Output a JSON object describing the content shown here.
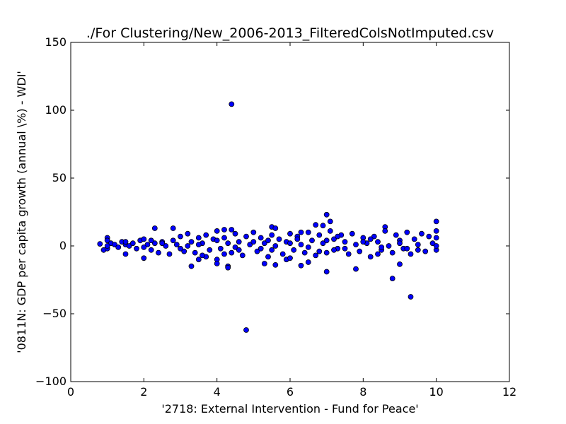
{
  "chart_data": {
    "type": "scatter",
    "title": "./For Clustering/New_2006-2013_FilteredColsNotImputed.csv",
    "xlabel": "'2718: External Intervention - Fund for Peace'",
    "ylabel": "'0811N: GDP per capita growth  (annual \\%) - WDI'",
    "xlim": [
      0,
      12
    ],
    "ylim": [
      -100,
      150
    ],
    "xticks": [
      0,
      2,
      4,
      6,
      8,
      10,
      12
    ],
    "yticks": [
      -100,
      -50,
      0,
      50,
      100,
      150
    ],
    "xtick_labels": [
      "0",
      "2",
      "4",
      "6",
      "8",
      "10",
      "12"
    ],
    "ytick_labels": [
      "−100",
      "−50",
      "0",
      "50",
      "100",
      "150"
    ],
    "grid": false,
    "marker_color": "#0000ff",
    "marker_edge": "#000000",
    "series": [
      {
        "name": "countries",
        "points": [
          [
            4.4,
            104.5
          ],
          [
            4.8,
            -62
          ],
          [
            9.3,
            -37.5
          ],
          [
            8.8,
            -24
          ],
          [
            7.0,
            23
          ],
          [
            7.1,
            18
          ],
          [
            10.0,
            18
          ],
          [
            7.0,
            -19
          ],
          [
            9.0,
            -13.5
          ],
          [
            7.8,
            -17
          ],
          [
            6.9,
            15
          ],
          [
            6.7,
            15.5
          ],
          [
            3.3,
            -15
          ],
          [
            4.3,
            -15
          ],
          [
            4.3,
            -16
          ],
          [
            4.2,
            12
          ],
          [
            4.4,
            12
          ],
          [
            2.3,
            13
          ],
          [
            2.8,
            13
          ],
          [
            5.3,
            -13
          ],
          [
            5.6,
            -14
          ],
          [
            6.3,
            -14.5
          ],
          [
            6.5,
            -12
          ],
          [
            8.6,
            14
          ],
          [
            5.5,
            14
          ],
          [
            5.6,
            13
          ],
          [
            4.0,
            -10
          ],
          [
            4.0,
            -13
          ],
          [
            3.5,
            -10
          ],
          [
            3.7,
            -8
          ],
          [
            5.9,
            -10
          ],
          [
            6.0,
            -9
          ],
          [
            0.8,
            1.5
          ],
          [
            0.9,
            -3
          ],
          [
            1.0,
            6
          ],
          [
            1.0,
            4
          ],
          [
            1.0,
            -2
          ],
          [
            1.1,
            2
          ],
          [
            1.2,
            1
          ],
          [
            1.3,
            -1
          ],
          [
            1.4,
            3
          ],
          [
            1.5,
            -6
          ],
          [
            1.5,
            1
          ],
          [
            1.6,
            0
          ],
          [
            1.7,
            2
          ],
          [
            1.8,
            -2
          ],
          [
            1.9,
            4
          ],
          [
            2.0,
            -9
          ],
          [
            2.0,
            5
          ],
          [
            2.1,
            1
          ],
          [
            2.2,
            -3
          ],
          [
            2.3,
            2
          ],
          [
            2.4,
            -5
          ],
          [
            2.5,
            3
          ],
          [
            2.6,
            0
          ],
          [
            2.7,
            -6
          ],
          [
            2.8,
            4
          ],
          [
            2.9,
            1
          ],
          [
            3.0,
            7
          ],
          [
            3.1,
            -4
          ],
          [
            3.2,
            9
          ],
          [
            3.3,
            3
          ],
          [
            3.4,
            -5
          ],
          [
            3.5,
            6
          ],
          [
            3.6,
            2
          ],
          [
            3.7,
            8
          ],
          [
            3.8,
            -3
          ],
          [
            3.9,
            5
          ],
          [
            4.0,
            11
          ],
          [
            4.1,
            -2
          ],
          [
            4.2,
            6
          ],
          [
            4.3,
            2
          ],
          [
            4.4,
            -5
          ],
          [
            4.5,
            9
          ],
          [
            4.6,
            3
          ],
          [
            4.7,
            -7
          ],
          [
            4.8,
            7
          ],
          [
            4.9,
            1
          ],
          [
            5.0,
            10
          ],
          [
            5.1,
            -4
          ],
          [
            5.2,
            6
          ],
          [
            5.3,
            2
          ],
          [
            5.4,
            -8
          ],
          [
            5.5,
            8
          ],
          [
            5.6,
            0
          ],
          [
            5.7,
            5
          ],
          [
            5.8,
            -6
          ],
          [
            5.9,
            3
          ],
          [
            6.0,
            9
          ],
          [
            6.1,
            -3
          ],
          [
            6.2,
            7
          ],
          [
            6.3,
            1
          ],
          [
            6.4,
            -5
          ],
          [
            6.5,
            10
          ],
          [
            6.6,
            4
          ],
          [
            6.7,
            -7
          ],
          [
            6.8,
            8
          ],
          [
            6.9,
            2
          ],
          [
            7.0,
            -5
          ],
          [
            7.1,
            11
          ],
          [
            7.2,
            5
          ],
          [
            7.3,
            -2
          ],
          [
            7.4,
            8
          ],
          [
            7.5,
            3
          ],
          [
            7.6,
            -6
          ],
          [
            7.7,
            9
          ],
          [
            7.8,
            1
          ],
          [
            7.9,
            -4
          ],
          [
            8.0,
            6
          ],
          [
            8.1,
            2
          ],
          [
            8.2,
            -8
          ],
          [
            8.3,
            7
          ],
          [
            8.4,
            3
          ],
          [
            8.5,
            -3
          ],
          [
            8.6,
            11
          ],
          [
            8.7,
            0
          ],
          [
            8.8,
            -5
          ],
          [
            8.9,
            8
          ],
          [
            9.0,
            4
          ],
          [
            9.1,
            -2
          ],
          [
            9.2,
            10
          ],
          [
            9.3,
            -6
          ],
          [
            9.4,
            5
          ],
          [
            9.5,
            1
          ],
          [
            9.6,
            9
          ],
          [
            9.7,
            -4
          ],
          [
            9.8,
            7
          ],
          [
            9.9,
            2
          ],
          [
            10.0,
            11
          ],
          [
            10.0,
            6
          ],
          [
            10.0,
            -3
          ],
          [
            10.0,
            0
          ],
          [
            1.0,
            0
          ],
          [
            1.5,
            3
          ],
          [
            2.0,
            -1
          ],
          [
            2.5,
            2
          ],
          [
            3.0,
            -2
          ],
          [
            3.5,
            1
          ],
          [
            4.0,
            4
          ],
          [
            4.5,
            -1
          ],
          [
            5.0,
            3
          ],
          [
            5.5,
            -3
          ],
          [
            6.0,
            2
          ],
          [
            6.5,
            -1
          ],
          [
            7.0,
            4
          ],
          [
            7.5,
            -2
          ],
          [
            8.0,
            3
          ],
          [
            8.5,
            -1
          ],
          [
            9.0,
            2
          ],
          [
            9.5,
            -3
          ],
          [
            3.2,
            0
          ],
          [
            4.2,
            -6
          ],
          [
            5.2,
            -2
          ],
          [
            6.2,
            5
          ],
          [
            7.2,
            -3
          ],
          [
            8.2,
            5
          ],
          [
            9.2,
            -2
          ],
          [
            2.2,
            4
          ],
          [
            6.3,
            10
          ],
          [
            6.8,
            -4
          ],
          [
            7.3,
            7
          ],
          [
            5.4,
            4
          ],
          [
            4.6,
            -3
          ],
          [
            3.6,
            -7
          ],
          [
            8.4,
            -6
          ]
        ]
      }
    ]
  }
}
